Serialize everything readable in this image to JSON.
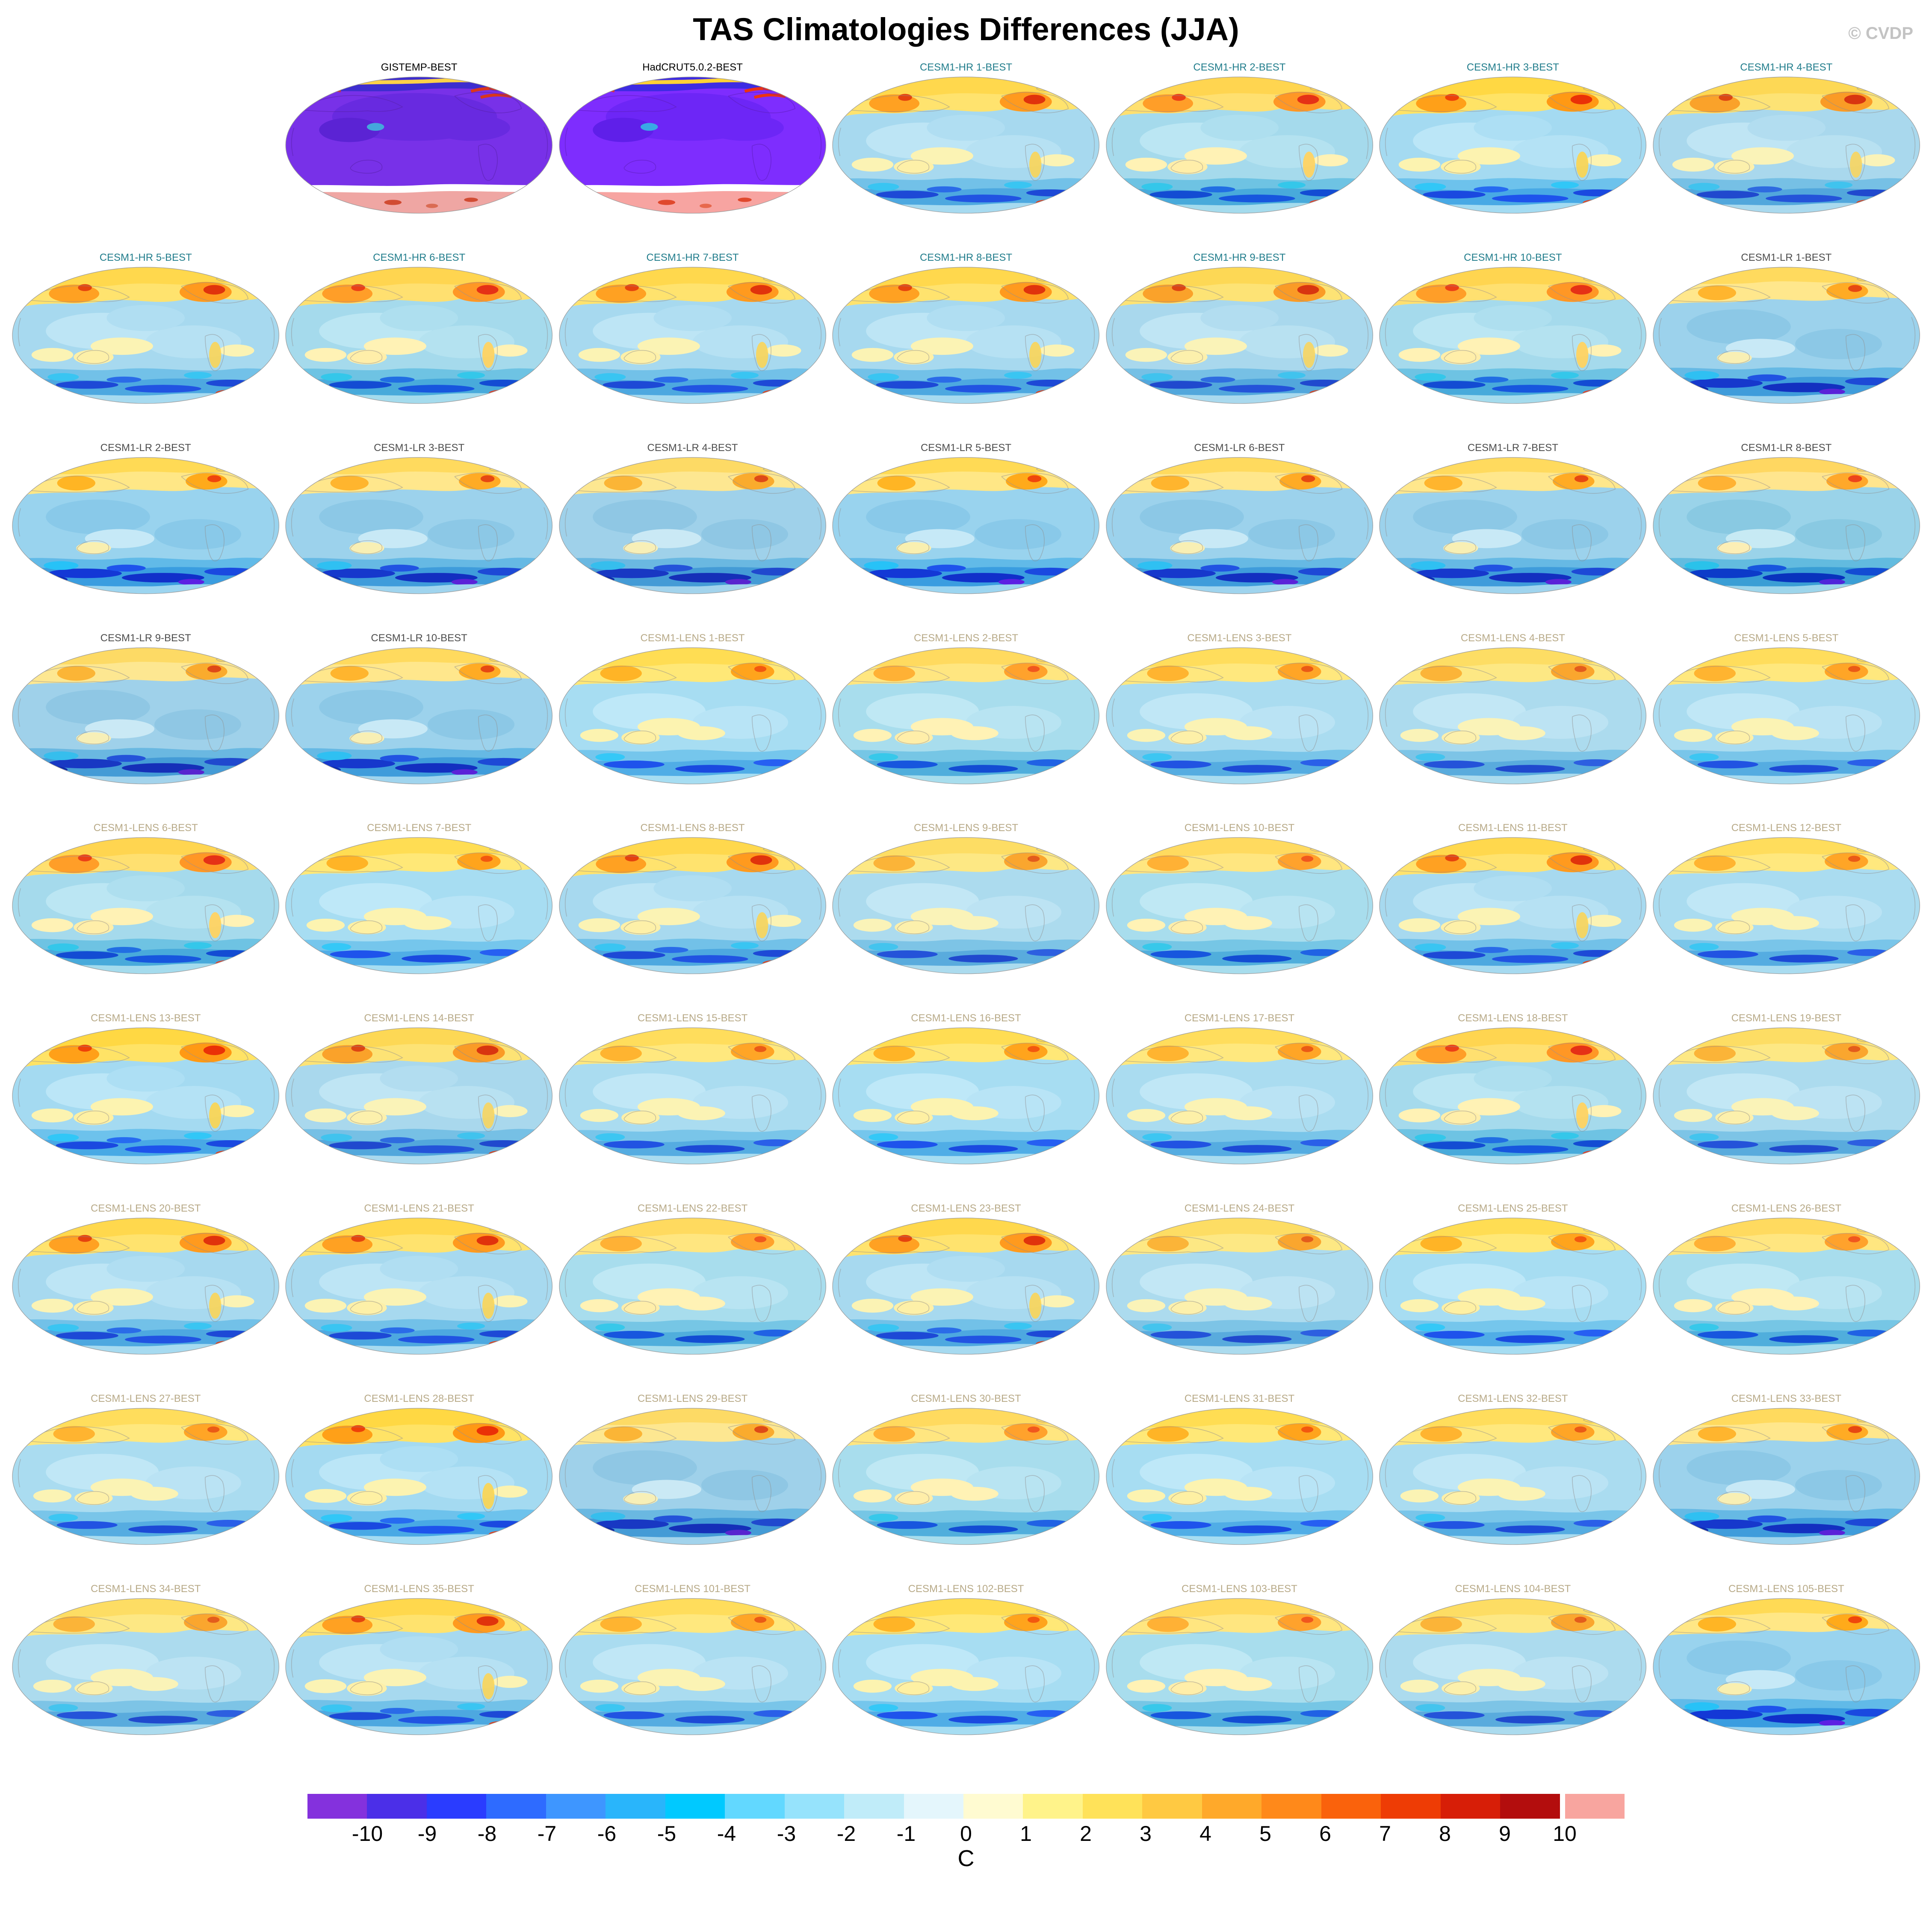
{
  "title": "TAS Climatologies Differences (JJA)",
  "watermark": "© CVDP",
  "grid": {
    "columns": 7,
    "leading_empty_cells": 1
  },
  "label_colors": {
    "obs": "#000000",
    "hr": "#217d8c",
    "lr": "#4d4d4d",
    "lens": "#b8aa88"
  },
  "panels": [
    {
      "label": "GISTEMP-BEST",
      "group": "obs",
      "variant": "purple"
    },
    {
      "label": "HadCRUT5.0.2-BEST",
      "group": "obs",
      "variant": "purple"
    },
    {
      "label": "CESM1-HR 1-BEST",
      "group": "hr",
      "variant": "warm"
    },
    {
      "label": "CESM1-HR 2-BEST",
      "group": "hr",
      "variant": "warm"
    },
    {
      "label": "CESM1-HR 3-BEST",
      "group": "hr",
      "variant": "warm"
    },
    {
      "label": "CESM1-HR 4-BEST",
      "group": "hr",
      "variant": "warm"
    },
    {
      "label": "CESM1-HR 5-BEST",
      "group": "hr",
      "variant": "warm"
    },
    {
      "label": "CESM1-HR 6-BEST",
      "group": "hr",
      "variant": "warm"
    },
    {
      "label": "CESM1-HR 7-BEST",
      "group": "hr",
      "variant": "warm"
    },
    {
      "label": "CESM1-HR 8-BEST",
      "group": "hr",
      "variant": "warm"
    },
    {
      "label": "CESM1-HR 9-BEST",
      "group": "hr",
      "variant": "warm"
    },
    {
      "label": "CESM1-HR 10-BEST",
      "group": "hr",
      "variant": "warm"
    },
    {
      "label": "CESM1-LR 1-BEST",
      "group": "lr",
      "variant": "cool"
    },
    {
      "label": "CESM1-LR 2-BEST",
      "group": "lr",
      "variant": "cool"
    },
    {
      "label": "CESM1-LR 3-BEST",
      "group": "lr",
      "variant": "cool"
    },
    {
      "label": "CESM1-LR 4-BEST",
      "group": "lr",
      "variant": "cool"
    },
    {
      "label": "CESM1-LR 5-BEST",
      "group": "lr",
      "variant": "cool"
    },
    {
      "label": "CESM1-LR 6-BEST",
      "group": "lr",
      "variant": "cool"
    },
    {
      "label": "CESM1-LR 7-BEST",
      "group": "lr",
      "variant": "cool"
    },
    {
      "label": "CESM1-LR 8-BEST",
      "group": "lr",
      "variant": "cool"
    },
    {
      "label": "CESM1-LR 9-BEST",
      "group": "lr",
      "variant": "cool"
    },
    {
      "label": "CESM1-LR 10-BEST",
      "group": "lr",
      "variant": "cool"
    },
    {
      "label": "CESM1-LENS 1-BEST",
      "group": "lens",
      "variant": "mild"
    },
    {
      "label": "CESM1-LENS 2-BEST",
      "group": "lens",
      "variant": "mild"
    },
    {
      "label": "CESM1-LENS 3-BEST",
      "group": "lens",
      "variant": "mild"
    },
    {
      "label": "CESM1-LENS 4-BEST",
      "group": "lens",
      "variant": "mild"
    },
    {
      "label": "CESM1-LENS 5-BEST",
      "group": "lens",
      "variant": "mild"
    },
    {
      "label": "CESM1-LENS 6-BEST",
      "group": "lens",
      "variant": "warm"
    },
    {
      "label": "CESM1-LENS 7-BEST",
      "group": "lens",
      "variant": "mild"
    },
    {
      "label": "CESM1-LENS 8-BEST",
      "group": "lens",
      "variant": "warm"
    },
    {
      "label": "CESM1-LENS 9-BEST",
      "group": "lens",
      "variant": "mild"
    },
    {
      "label": "CESM1-LENS 10-BEST",
      "group": "lens",
      "variant": "mild"
    },
    {
      "label": "CESM1-LENS 11-BEST",
      "group": "lens",
      "variant": "warm"
    },
    {
      "label": "CESM1-LENS 12-BEST",
      "group": "lens",
      "variant": "mild"
    },
    {
      "label": "CESM1-LENS 13-BEST",
      "group": "lens",
      "variant": "warm"
    },
    {
      "label": "CESM1-LENS 14-BEST",
      "group": "lens",
      "variant": "warm"
    },
    {
      "label": "CESM1-LENS 15-BEST",
      "group": "lens",
      "variant": "mild"
    },
    {
      "label": "CESM1-LENS 16-BEST",
      "group": "lens",
      "variant": "mild"
    },
    {
      "label": "CESM1-LENS 17-BEST",
      "group": "lens",
      "variant": "mild"
    },
    {
      "label": "CESM1-LENS 18-BEST",
      "group": "lens",
      "variant": "warm"
    },
    {
      "label": "CESM1-LENS 19-BEST",
      "group": "lens",
      "variant": "mild"
    },
    {
      "label": "CESM1-LENS 20-BEST",
      "group": "lens",
      "variant": "warm"
    },
    {
      "label": "CESM1-LENS 21-BEST",
      "group": "lens",
      "variant": "warm"
    },
    {
      "label": "CESM1-LENS 22-BEST",
      "group": "lens",
      "variant": "mild"
    },
    {
      "label": "CESM1-LENS 23-BEST",
      "group": "lens",
      "variant": "warm"
    },
    {
      "label": "CESM1-LENS 24-BEST",
      "group": "lens",
      "variant": "mild"
    },
    {
      "label": "CESM1-LENS 25-BEST",
      "group": "lens",
      "variant": "mild"
    },
    {
      "label": "CESM1-LENS 26-BEST",
      "group": "lens",
      "variant": "mild"
    },
    {
      "label": "CESM1-LENS 27-BEST",
      "group": "lens",
      "variant": "mild"
    },
    {
      "label": "CESM1-LENS 28-BEST",
      "group": "lens",
      "variant": "warm"
    },
    {
      "label": "CESM1-LENS 29-BEST",
      "group": "lens",
      "variant": "cool"
    },
    {
      "label": "CESM1-LENS 30-BEST",
      "group": "lens",
      "variant": "mild"
    },
    {
      "label": "CESM1-LENS 31-BEST",
      "group": "lens",
      "variant": "mild"
    },
    {
      "label": "CESM1-LENS 32-BEST",
      "group": "lens",
      "variant": "mild"
    },
    {
      "label": "CESM1-LENS 33-BEST",
      "group": "lens",
      "variant": "cool"
    },
    {
      "label": "CESM1-LENS 34-BEST",
      "group": "lens",
      "variant": "mild"
    },
    {
      "label": "CESM1-LENS 35-BEST",
      "group": "lens",
      "variant": "warm"
    },
    {
      "label": "CESM1-LENS 101-BEST",
      "group": "lens",
      "variant": "mild"
    },
    {
      "label": "CESM1-LENS 102-BEST",
      "group": "lens",
      "variant": "mild"
    },
    {
      "label": "CESM1-LENS 103-BEST",
      "group": "lens",
      "variant": "mild"
    },
    {
      "label": "CESM1-LENS 104-BEST",
      "group": "lens",
      "variant": "mild"
    },
    {
      "label": "CESM1-LENS 105-BEST",
      "group": "lens",
      "variant": "cool"
    }
  ],
  "colorbar": {
    "unit": "C",
    "ticks": [
      "-10",
      "-9",
      "-8",
      "-7",
      "-6",
      "-5",
      "-4",
      "-3",
      "-2",
      "-1",
      "0",
      "1",
      "2",
      "3",
      "4",
      "5",
      "6",
      "7",
      "8",
      "9",
      "10"
    ],
    "colors": [
      "#8431dd",
      "#4b2fe8",
      "#2a3cff",
      "#2e6bff",
      "#3e96ff",
      "#29b5fb",
      "#00c9ff",
      "#62d8ff",
      "#96e3fc",
      "#c0ecf9",
      "#e4f6fc",
      "#fffbd1",
      "#fff38a",
      "#ffe259",
      "#ffc942",
      "#ffa92a",
      "#ff891a",
      "#fa620c",
      "#ee3c05",
      "#d71e07",
      "#b30d0d",
      "#f8a59f"
    ]
  }
}
